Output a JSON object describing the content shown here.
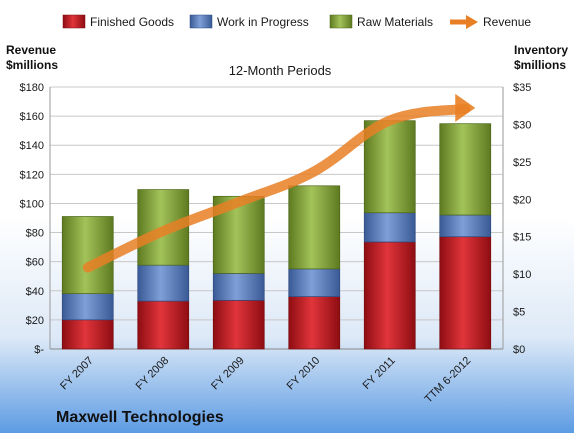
{
  "chart_data": {
    "type": "bar",
    "subtitle": "12-Month Periods",
    "company": "Maxwell Technologies",
    "left_axis": {
      "title_line1": "Revenue",
      "title_line2": "$millions",
      "ylim": [
        0,
        180
      ],
      "ticks": [
        0,
        20,
        40,
        60,
        80,
        100,
        120,
        140,
        160,
        180
      ],
      "tick_labels": [
        "$-",
        "$20",
        "$40",
        "$60",
        "$80",
        "$100",
        "$120",
        "$140",
        "$160",
        "$180"
      ]
    },
    "right_axis": {
      "title_line1": "Inventory",
      "title_line2": "$millions",
      "ylim": [
        0,
        35
      ],
      "ticks": [
        0,
        5,
        10,
        15,
        20,
        25,
        30,
        35
      ],
      "tick_labels": [
        "$0",
        "$5",
        "$10",
        "$15",
        "$20",
        "$25",
        "$30",
        "$35"
      ]
    },
    "categories": [
      "FY 2007",
      "FY 2008",
      "FY 2009",
      "FY 2010",
      "FY 2011",
      "TTM 6-2012"
    ],
    "stacked_series": [
      {
        "name": "Finished Goods",
        "axis": "right",
        "color": "#c0191f",
        "values": [
          3.9,
          6.4,
          6.5,
          7.0,
          14.3,
          15.0
        ]
      },
      {
        "name": "Work in Progress",
        "axis": "right",
        "color": "#4f73b8",
        "values": [
          3.5,
          4.8,
          3.6,
          3.7,
          3.9,
          2.9
        ]
      },
      {
        "name": "Raw Materials",
        "axis": "right",
        "color": "#7e9e32",
        "values": [
          10.3,
          10.1,
          10.3,
          11.1,
          12.3,
          12.2
        ]
      }
    ],
    "line_series": {
      "name": "Revenue",
      "axis": "left",
      "color": "#e87f24",
      "values": [
        56,
        81,
        101,
        122,
        157,
        165
      ]
    },
    "grid": true,
    "legend": "top"
  }
}
